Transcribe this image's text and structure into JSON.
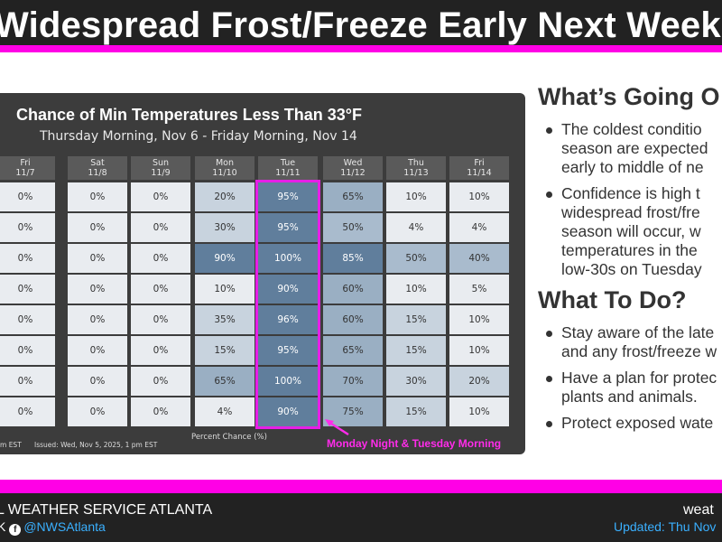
{
  "header": {
    "title": "Widespread Frost/Freeze Early Next Week",
    "accent_color": "#ff00e6"
  },
  "chart_data": {
    "type": "table",
    "title": "Chance of Min Temperatures Less Than 33°F",
    "subtitle": "Thursday Morning, Nov 6 - Friday Morning, Nov 14",
    "columns": [
      {
        "day": "Fri",
        "date": "11/7"
      },
      {
        "day": "Sat",
        "date": "11/8"
      },
      {
        "day": "Sun",
        "date": "11/9"
      },
      {
        "day": "Mon",
        "date": "11/10"
      },
      {
        "day": "Tue",
        "date": "11/11"
      },
      {
        "day": "Wed",
        "date": "11/12"
      },
      {
        "day": "Thu",
        "date": "11/13"
      },
      {
        "day": "Fri",
        "date": "11/14"
      }
    ],
    "rows": [
      [
        0,
        0,
        0,
        20,
        95,
        65,
        10,
        10
      ],
      [
        0,
        0,
        0,
        30,
        95,
        50,
        4,
        4
      ],
      [
        0,
        0,
        0,
        90,
        100,
        85,
        50,
        40
      ],
      [
        0,
        0,
        0,
        10,
        90,
        60,
        10,
        5
      ],
      [
        0,
        0,
        0,
        35,
        96,
        60,
        15,
        10
      ],
      [
        0,
        0,
        0,
        15,
        95,
        65,
        15,
        10
      ],
      [
        0,
        0,
        0,
        65,
        100,
        70,
        30,
        20
      ],
      [
        0,
        0,
        0,
        4,
        90,
        75,
        15,
        10
      ]
    ],
    "value_suffix": "%",
    "xlabel": "Percent Chance (%)",
    "issued": "Issued: Wed, Nov 5, 2025, 1 pm EST",
    "footnote_left": "m EST",
    "highlight_column": 4,
    "highlight_label": "Monday Night & Tuesday Morning"
  },
  "going_on": {
    "heading": "What’s Going O",
    "bullets": [
      [
        "The coldest conditio",
        "season are expected",
        "early to middle of ne"
      ],
      [
        "Confidence is high t",
        "widespread frost/fre",
        "season will occur, w",
        "temperatures in the",
        "low-30s on Tuesday"
      ]
    ]
  },
  "to_do": {
    "heading": "What To Do?",
    "bullets": [
      [
        "Stay aware of the late",
        "and any frost/freeze w"
      ],
      [
        "Have a plan for protec",
        "plants and animals."
      ],
      [
        "Protect exposed wate"
      ]
    ]
  },
  "footer": {
    "org": "L WEATHER SERVICE ATLANTA",
    "social_prefix": "K",
    "social_handle": "@NWSAtlanta",
    "facebook_icon": "facebook-icon",
    "web": "weat",
    "updated": "Updated: Thu Nov"
  }
}
